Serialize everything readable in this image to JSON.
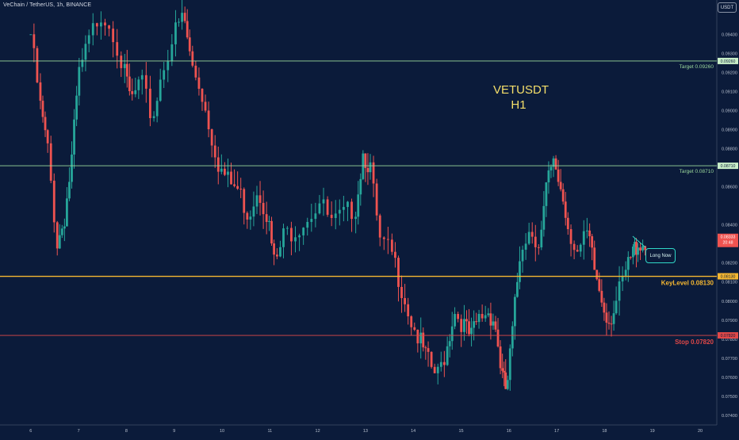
{
  "header": {
    "symbol_line": "VeChain / TetherUS, 1h, BINANCE",
    "unit_badge": "USDT"
  },
  "title": {
    "line1": "VETUSDT",
    "line2": "H1"
  },
  "colors": {
    "background": "#0b1b3a",
    "up": "#26a69a",
    "down": "#ef5350",
    "target": "#9bd89b",
    "key": "#f5b731",
    "stop": "#e04848"
  },
  "annotations": {
    "callout": "Long Now"
  },
  "chart_data": {
    "type": "candlestick",
    "x_tick_labels": [
      "6",
      "7",
      "8",
      "9",
      "10",
      "11",
      "12",
      "13",
      "14",
      "15",
      "16",
      "17",
      "18",
      "19",
      "20"
    ],
    "y_tick_labels": [
      "0.09400",
      "0.09300",
      "0.09200",
      "0.09100",
      "0.09000",
      "0.08900",
      "0.08800",
      "0.08600",
      "0.08400",
      "0.08200",
      "0.08100",
      "0.08000",
      "0.07900",
      "0.07800",
      "0.07700",
      "0.07600",
      "0.07500",
      "0.07400"
    ],
    "ylim": [
      0.0735,
      0.0958
    ],
    "levels": [
      {
        "name": "Target 0.09260",
        "value": 0.0926,
        "tag": "0.09260",
        "style": "target"
      },
      {
        "name": "Target 0.08710",
        "value": 0.0871,
        "tag": "0.08710",
        "style": "target"
      },
      {
        "name": "KeyLevel 0.08130",
        "value": 0.0813,
        "tag": "0.08130",
        "style": "key"
      },
      {
        "name": "Stop 0.07820",
        "value": 0.0782,
        "tag": "0.07820",
        "style": "stop"
      }
    ],
    "last_price": {
      "value": "0.08333",
      "countdown": "20:48"
    },
    "path": [
      [
        6.0,
        0.094
      ],
      [
        6.2,
        0.0902
      ],
      [
        6.35,
        0.088
      ],
      [
        6.55,
        0.083
      ],
      [
        6.7,
        0.0843
      ],
      [
        6.85,
        0.0872
      ],
      [
        7.0,
        0.0918
      ],
      [
        7.2,
        0.0935
      ],
      [
        7.45,
        0.0952
      ],
      [
        7.7,
        0.0944
      ],
      [
        7.95,
        0.092
      ],
      [
        8.1,
        0.0905
      ],
      [
        8.3,
        0.0915
      ],
      [
        8.55,
        0.0895
      ],
      [
        8.75,
        0.0922
      ],
      [
        9.0,
        0.094
      ],
      [
        9.2,
        0.095
      ],
      [
        9.35,
        0.0925
      ],
      [
        9.55,
        0.0912
      ],
      [
        9.75,
        0.089
      ],
      [
        9.95,
        0.087
      ],
      [
        10.15,
        0.0862
      ],
      [
        10.35,
        0.0858
      ],
      [
        10.55,
        0.0845
      ],
      [
        10.75,
        0.086
      ],
      [
        10.95,
        0.0845
      ],
      [
        11.1,
        0.0818
      ],
      [
        11.3,
        0.0835
      ],
      [
        11.55,
        0.0838
      ],
      [
        11.8,
        0.0845
      ],
      [
        12.05,
        0.0852
      ],
      [
        12.3,
        0.084
      ],
      [
        12.55,
        0.0845
      ],
      [
        12.8,
        0.085
      ],
      [
        12.95,
        0.0878
      ],
      [
        13.1,
        0.087
      ],
      [
        13.3,
        0.083
      ],
      [
        13.55,
        0.0825
      ],
      [
        13.75,
        0.0808
      ],
      [
        13.95,
        0.079
      ],
      [
        14.15,
        0.0778
      ],
      [
        14.3,
        0.0768
      ],
      [
        14.5,
        0.076
      ],
      [
        14.7,
        0.0775
      ],
      [
        14.85,
        0.0795
      ],
      [
        15.05,
        0.0788
      ],
      [
        15.2,
        0.078
      ],
      [
        15.35,
        0.079
      ],
      [
        15.55,
        0.0795
      ],
      [
        15.7,
        0.079
      ],
      [
        15.85,
        0.0762
      ],
      [
        15.95,
        0.0752
      ],
      [
        16.1,
        0.079
      ],
      [
        16.25,
        0.083
      ],
      [
        16.45,
        0.0838
      ],
      [
        16.65,
        0.083
      ],
      [
        16.8,
        0.0862
      ],
      [
        16.95,
        0.0872
      ],
      [
        17.1,
        0.0858
      ],
      [
        17.25,
        0.0838
      ],
      [
        17.45,
        0.0825
      ],
      [
        17.65,
        0.0835
      ],
      [
        17.8,
        0.0815
      ],
      [
        17.95,
        0.08
      ],
      [
        18.1,
        0.079
      ],
      [
        18.25,
        0.08
      ],
      [
        18.45,
        0.0815
      ],
      [
        18.6,
        0.0826
      ],
      [
        18.7,
        0.0831
      ],
      [
        18.85,
        0.0829
      ]
    ]
  }
}
